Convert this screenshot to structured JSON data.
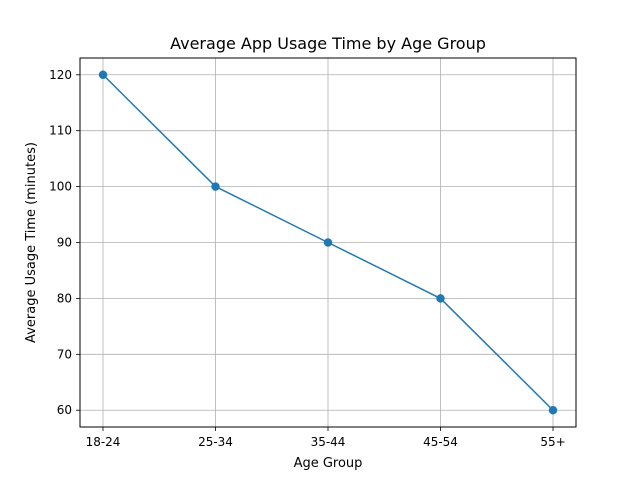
{
  "chart_data": {
    "type": "line",
    "title": "Average App Usage Time by Age Group",
    "xlabel": "Age Group",
    "ylabel": "Average Usage Time (minutes)",
    "categories": [
      "18-24",
      "25-34",
      "35-44",
      "45-54",
      "55+"
    ],
    "series": [
      {
        "values": [
          120,
          100,
          90,
          80,
          60
        ],
        "marker": "circle"
      }
    ],
    "yticks": [
      60,
      70,
      80,
      90,
      100,
      110,
      120
    ],
    "ylim": [
      57,
      123
    ],
    "grid": true,
    "line_color": "#1f77b4",
    "grid_color": "#b0b0b0"
  }
}
